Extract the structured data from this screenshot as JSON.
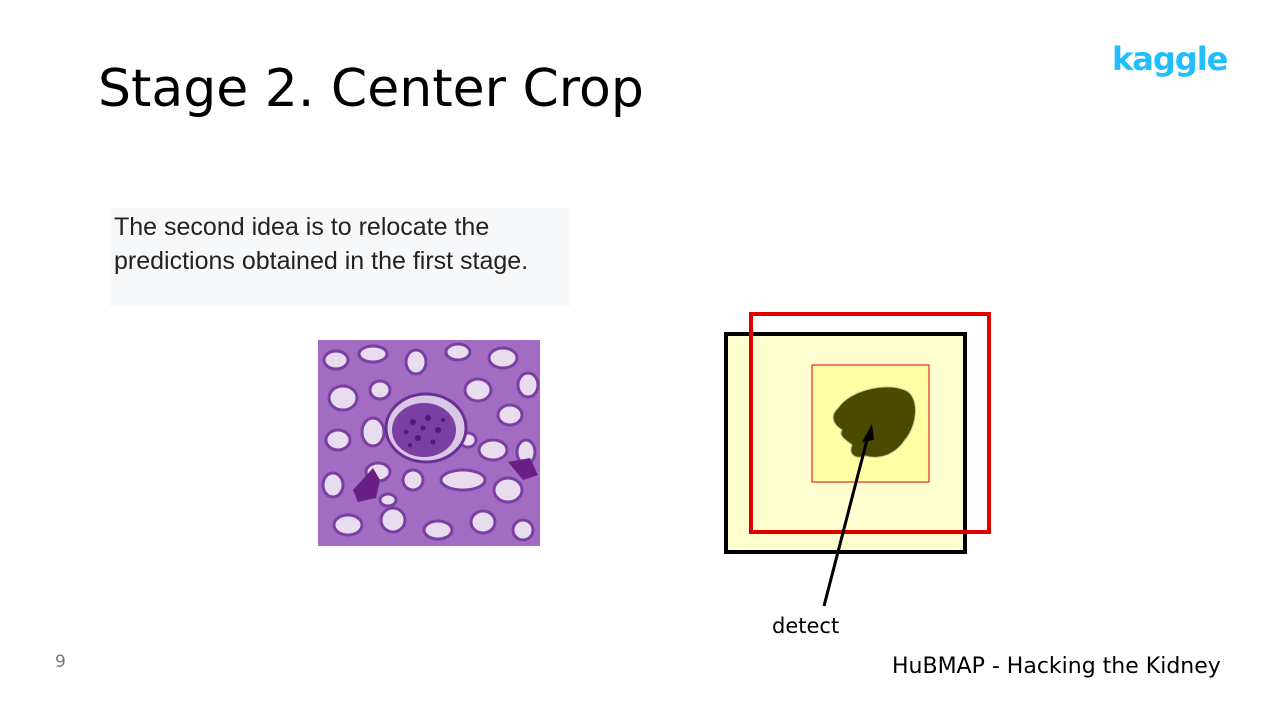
{
  "slide": {
    "title": "Stage 2. Center Crop",
    "logo_text": "kaggle",
    "body_text": "The second idea is to relocate the predictions obtained in the first stage.",
    "annotation": "detect",
    "page_number": "9",
    "footer": "HuBMAP - Hacking the Kidney"
  },
  "colors": {
    "logo": "#20BEFF",
    "crop_box": "#E00000",
    "tile_fill": "#FFFFD0",
    "center_fill": "#FFFFA6",
    "mask": "#4A4A00",
    "tissue": "#A070C0"
  }
}
